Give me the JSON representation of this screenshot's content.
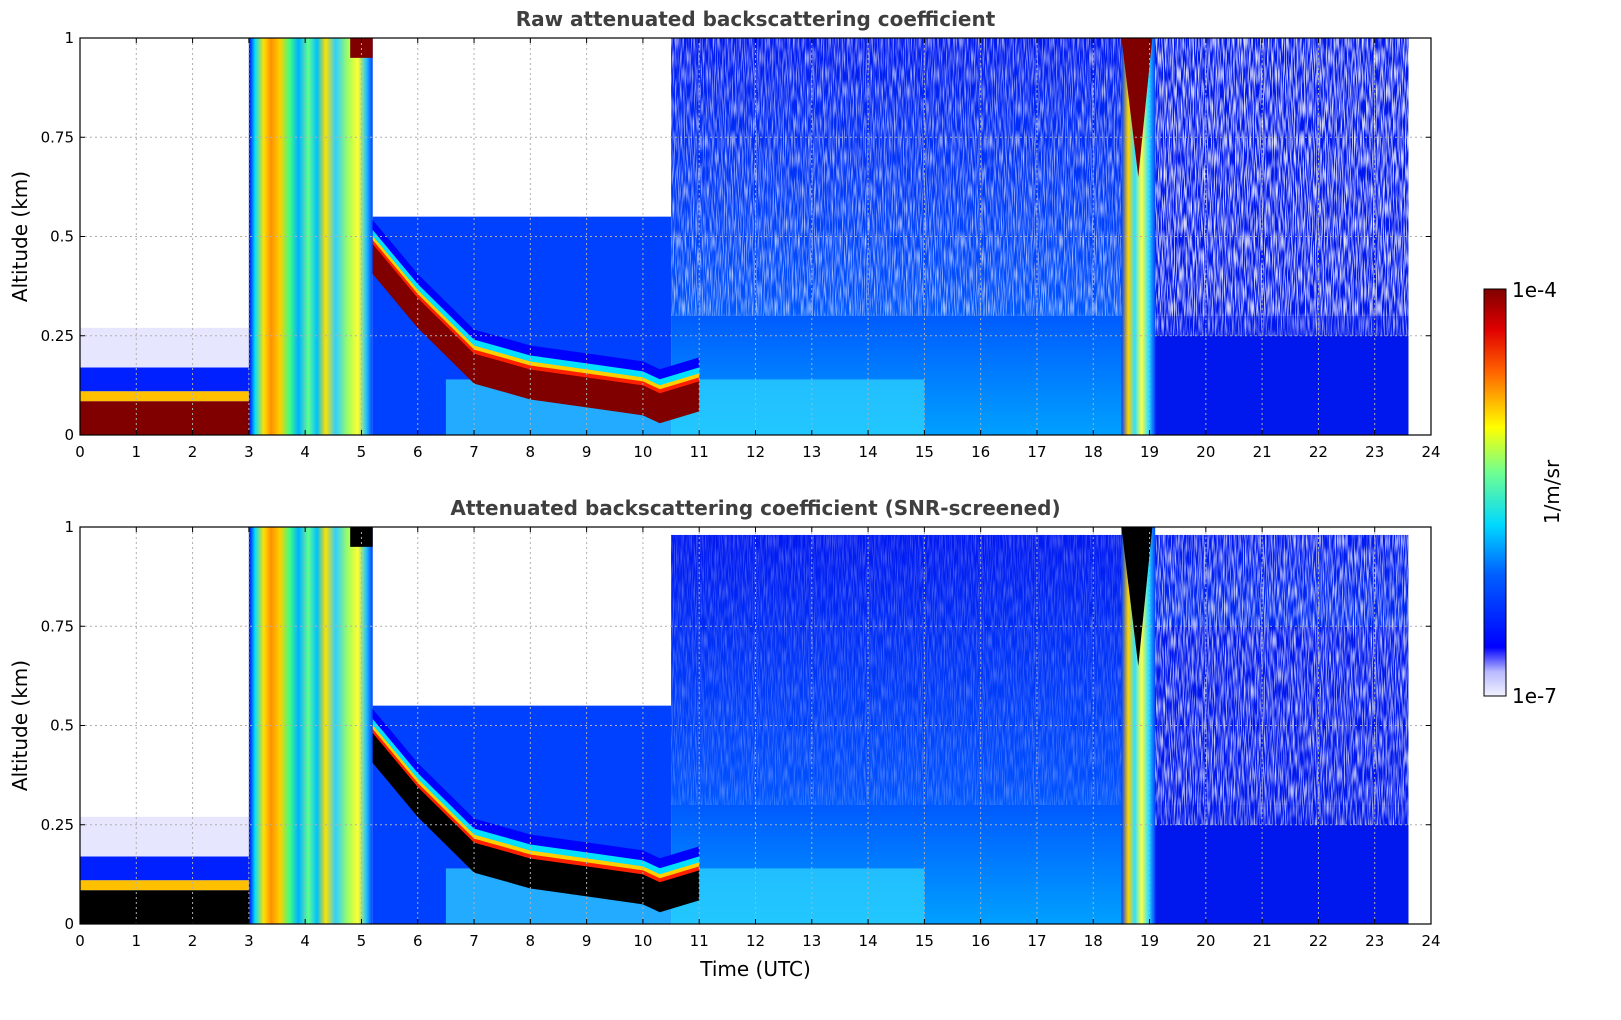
{
  "chart_data": [
    {
      "type": "heatmap",
      "title": "Raw attenuated backscattering coefficient",
      "xlabel": "",
      "ylabel": "Altitude (km)",
      "xlim": [
        0,
        24
      ],
      "ylim": [
        0,
        1
      ],
      "xticks": [
        "0",
        "1",
        "2",
        "3",
        "4",
        "5",
        "6",
        "7",
        "8",
        "9",
        "10",
        "11",
        "12",
        "13",
        "14",
        "15",
        "16",
        "17",
        "18",
        "19",
        "20",
        "21",
        "22",
        "23",
        "24"
      ],
      "yticks": [
        "0",
        "0.25",
        "0.5",
        "0.75",
        "1"
      ],
      "grid": true,
      "colorscale": "jet (log)",
      "data_end_time": 23.6,
      "layers": [
        {
          "name": "low stratiform cloud",
          "time": [
            0,
            3.0
          ],
          "altitude": [
            0.01,
            0.08
          ]
        },
        {
          "name": "descending aerosol/cloud layer",
          "time": [
            5.0,
            6.0,
            7.0,
            8.0,
            9.0,
            10.0,
            10.3,
            11.0
          ],
          "altitude": [
            0.5,
            0.33,
            0.19,
            0.15,
            0.13,
            0.11,
            0.09,
            0.12
          ]
        },
        {
          "name": "precipitation column",
          "time": [
            3.0,
            5.2
          ],
          "altitude": [
            0,
            1
          ]
        },
        {
          "name": "convective column",
          "time": [
            18.5,
            19.1
          ],
          "altitude": [
            0,
            1
          ]
        }
      ],
      "noisy_region": {
        "time": [
          10.5,
          23.6
        ],
        "altitude": [
          0.25,
          1
        ]
      }
    },
    {
      "type": "heatmap",
      "title": "Attenuated backscattering coefficient (SNR-screened)",
      "xlabel": "Time (UTC)",
      "ylabel": "Altitude (km)",
      "xlim": [
        0,
        24
      ],
      "ylim": [
        0,
        1
      ],
      "xticks": [
        "0",
        "1",
        "2",
        "3",
        "4",
        "5",
        "6",
        "7",
        "8",
        "9",
        "10",
        "11",
        "12",
        "13",
        "14",
        "15",
        "16",
        "17",
        "18",
        "19",
        "20",
        "21",
        "22",
        "23",
        "24"
      ],
      "yticks": [
        "0",
        "0.25",
        "0.5",
        "0.75",
        "1"
      ],
      "grid": true,
      "colorscale": "jet (log)",
      "data_end_time": 23.6,
      "saturated_color": "#000000"
    }
  ],
  "colorbar": {
    "label": "1/m/sr",
    "max_label": "1e-4",
    "min_label": "1e-7",
    "range": [
      1e-07,
      0.0001
    ],
    "scale": "log"
  }
}
